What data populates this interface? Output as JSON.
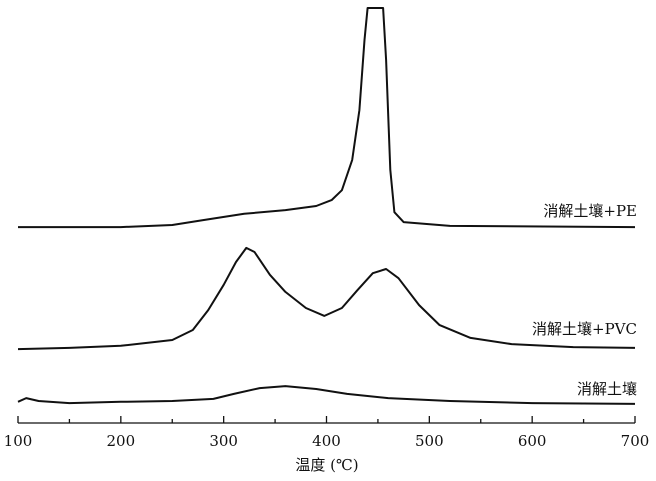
{
  "chart_data": {
    "type": "line",
    "x_label": "温度 (℃)",
    "xlim": [
      100,
      700
    ],
    "xticks": [
      100,
      200,
      300,
      400,
      500,
      600,
      700
    ],
    "ylim": [
      0,
      100
    ],
    "series": [
      {
        "name": "消解土壤+PE",
        "color": "#111111",
        "x": [
          100,
          200,
          250,
          280,
          320,
          360,
          390,
          405,
          415,
          425,
          432,
          437,
          440,
          455,
          458,
          462,
          466,
          475,
          520,
          700
        ],
        "values": [
          47.2,
          47.2,
          47.7,
          48.9,
          50.4,
          51.3,
          52.3,
          53.7,
          56.1,
          63.4,
          75.4,
          92.3,
          100,
          100,
          87.5,
          61,
          50.8,
          48.4,
          47.5,
          47.2
        ]
      },
      {
        "name": "消解土壤+PVC",
        "color": "#111111",
        "x": [
          100,
          150,
          200,
          250,
          270,
          285,
          300,
          312,
          322,
          330,
          345,
          360,
          380,
          398,
          415,
          430,
          445,
          458,
          470,
          490,
          510,
          540,
          580,
          640,
          700
        ],
        "values": [
          17.8,
          18.1,
          18.6,
          20,
          22.4,
          27.2,
          33.3,
          38.8,
          42.2,
          41.2,
          35.7,
          31.6,
          27.7,
          25.8,
          27.7,
          32,
          36.1,
          37.1,
          34.9,
          28.4,
          23.6,
          20.5,
          19,
          18.3,
          18.1
        ]
      },
      {
        "name": "消解土壤",
        "color": "#111111",
        "x": [
          100,
          108,
          120,
          150,
          200,
          250,
          290,
          310,
          335,
          360,
          390,
          420,
          460,
          520,
          600,
          700
        ],
        "values": [
          5.1,
          6,
          5.3,
          4.8,
          5.1,
          5.3,
          5.8,
          7,
          8.4,
          8.9,
          8.2,
          7,
          6,
          5.3,
          4.8,
          4.6
        ]
      }
    ]
  }
}
